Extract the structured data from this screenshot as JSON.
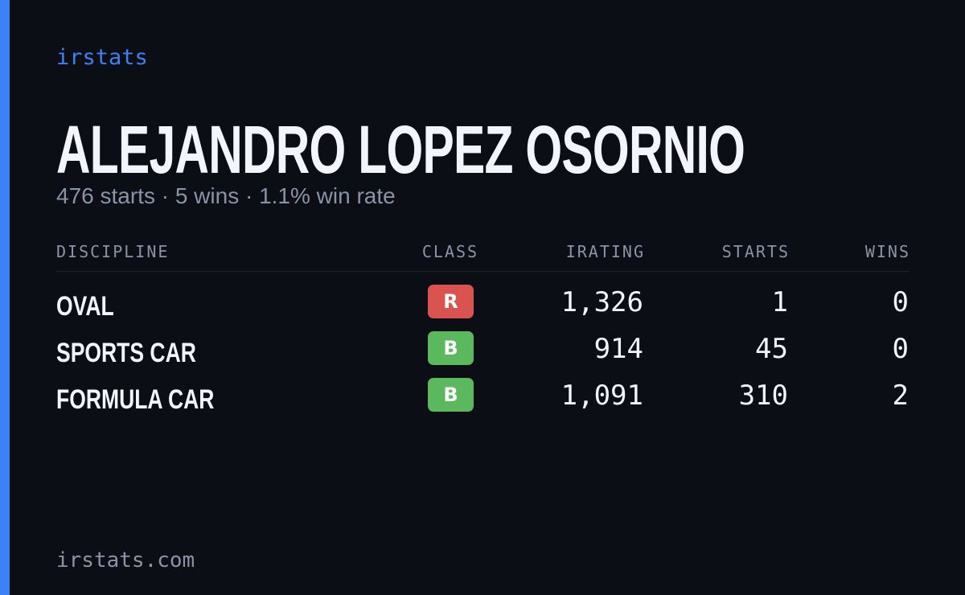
{
  "brand": "irstats",
  "driver": {
    "name": "ALEJANDRO LOPEZ OSORNIO",
    "summary": "476 starts · 5 wins · 1.1% win rate"
  },
  "table": {
    "headers": [
      "DISCIPLINE",
      "CLASS",
      "IRATING",
      "STARTS",
      "WINS"
    ],
    "rows": [
      {
        "discipline": "OVAL",
        "class": "R",
        "class_color": "#d9534f",
        "irating": "1,326",
        "starts": "1",
        "wins": "0"
      },
      {
        "discipline": "SPORTS CAR",
        "class": "B",
        "class_color": "#5cb85c",
        "irating": "914",
        "starts": "45",
        "wins": "0"
      },
      {
        "discipline": "FORMULA CAR",
        "class": "B",
        "class_color": "#5cb85c",
        "irating": "1,091",
        "starts": "310",
        "wins": "2"
      }
    ]
  },
  "footer": "irstats.com"
}
